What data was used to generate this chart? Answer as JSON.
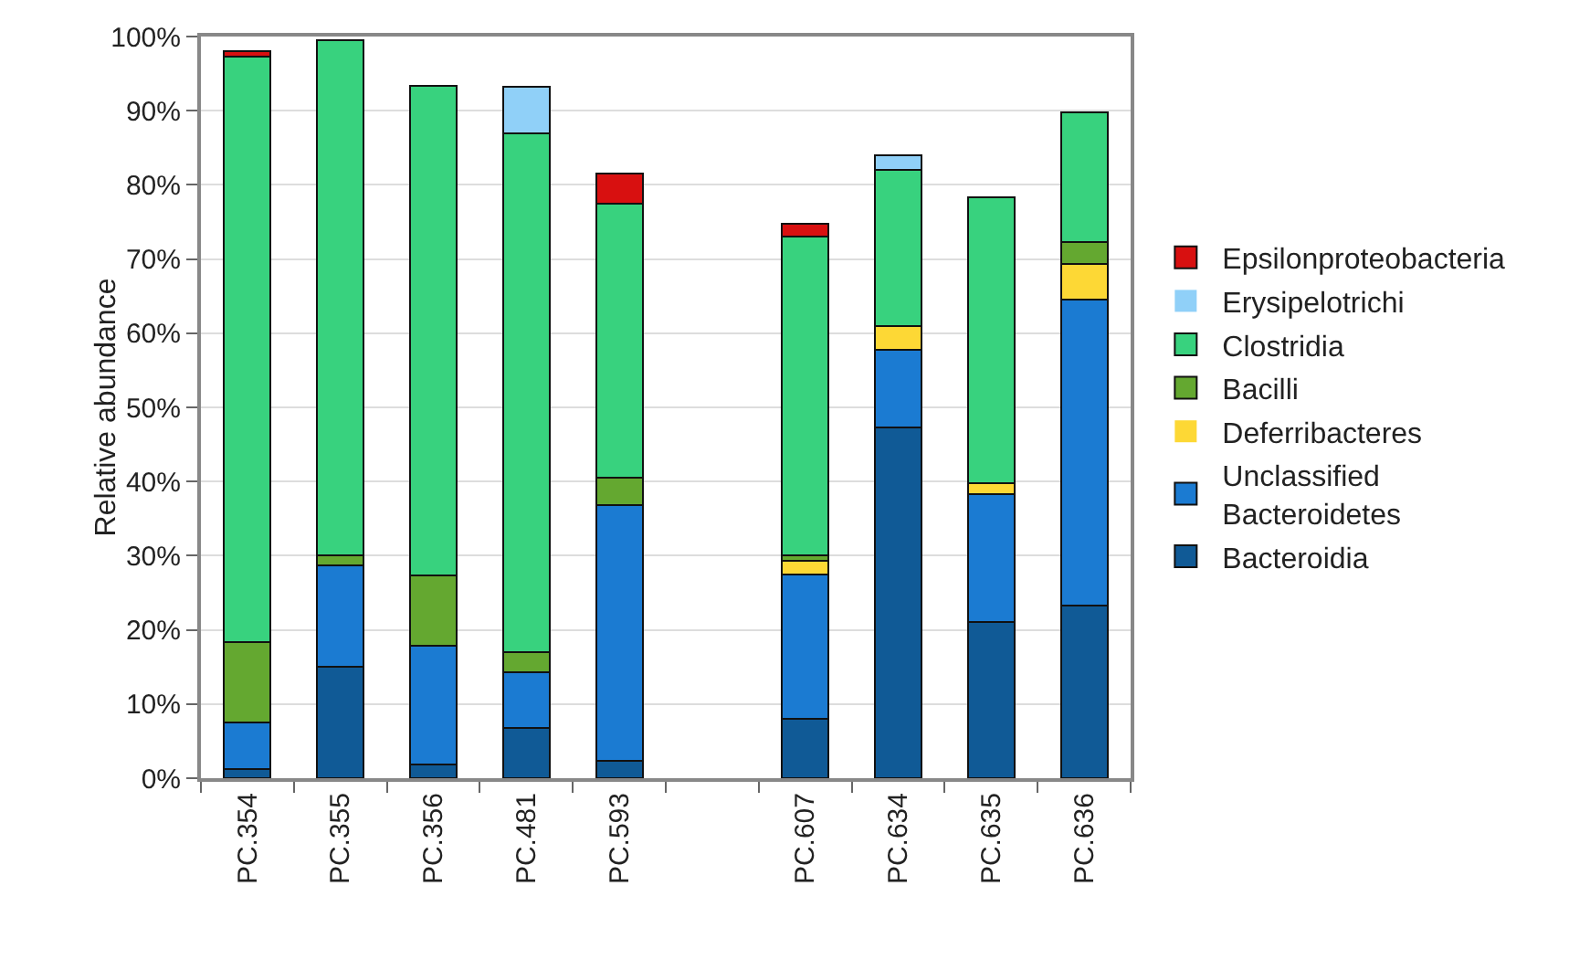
{
  "chart_data": {
    "type": "bar",
    "stacked": true,
    "ylabel": "Relative abundance",
    "categories": [
      "PC.354",
      "PC.355",
      "PC.356",
      "PC.481",
      "PC.593",
      null,
      "PC.607",
      "PC.634",
      "PC.635",
      "PC.636"
    ],
    "series": [
      {
        "name": "Bacteroidia",
        "color": "#105a96",
        "values": [
          1.2,
          15,
          1.8,
          6.8,
          2.3,
          null,
          8,
          47.3,
          21,
          23.3
        ]
      },
      {
        "name": "Unclassified Bacteroidetes",
        "color": "#1b7bd2",
        "values": [
          6.3,
          13.7,
          16,
          7.5,
          34.5,
          null,
          19.5,
          10.5,
          17.3,
          41.2
        ]
      },
      {
        "name": "Deferribacteres",
        "color": "#fdd835",
        "values": [
          0,
          0,
          0,
          0,
          0,
          null,
          1.8,
          3.2,
          1.5,
          4.8
        ]
      },
      {
        "name": "Bacilli",
        "color": "#64a830",
        "values": [
          10.8,
          1.3,
          9.5,
          2.7,
          3.7,
          null,
          0.7,
          0,
          0,
          3
        ]
      },
      {
        "name": "Clostridia",
        "color": "#38d27e",
        "values": [
          79,
          69.5,
          66,
          70,
          37,
          null,
          43,
          21,
          38.5,
          17.5
        ]
      },
      {
        "name": "Erysipelotrichi",
        "color": "#90d0f8",
        "values": [
          0,
          0,
          0,
          6.2,
          0,
          null,
          0,
          2,
          0,
          0
        ]
      },
      {
        "name": "Epsilonproteobacteria",
        "color": "#d81010",
        "values": [
          0.7,
          0,
          0,
          0,
          4,
          null,
          1.8,
          0,
          0,
          0
        ]
      }
    ],
    "ylim": [
      0,
      100
    ],
    "yticks": [
      {
        "value": 0,
        "label": "0%"
      },
      {
        "value": 10,
        "label": "10%"
      },
      {
        "value": 20,
        "label": "20%"
      },
      {
        "value": 30,
        "label": "30%"
      },
      {
        "value": 40,
        "label": "40%"
      },
      {
        "value": 50,
        "label": "50%"
      },
      {
        "value": 60,
        "label": "60%"
      },
      {
        "value": 70,
        "label": "70%"
      },
      {
        "value": 80,
        "label": "80%"
      },
      {
        "value": 90,
        "label": "90%"
      },
      {
        "value": 100,
        "label": "100%"
      }
    ],
    "grid": "y",
    "legend": "right"
  }
}
